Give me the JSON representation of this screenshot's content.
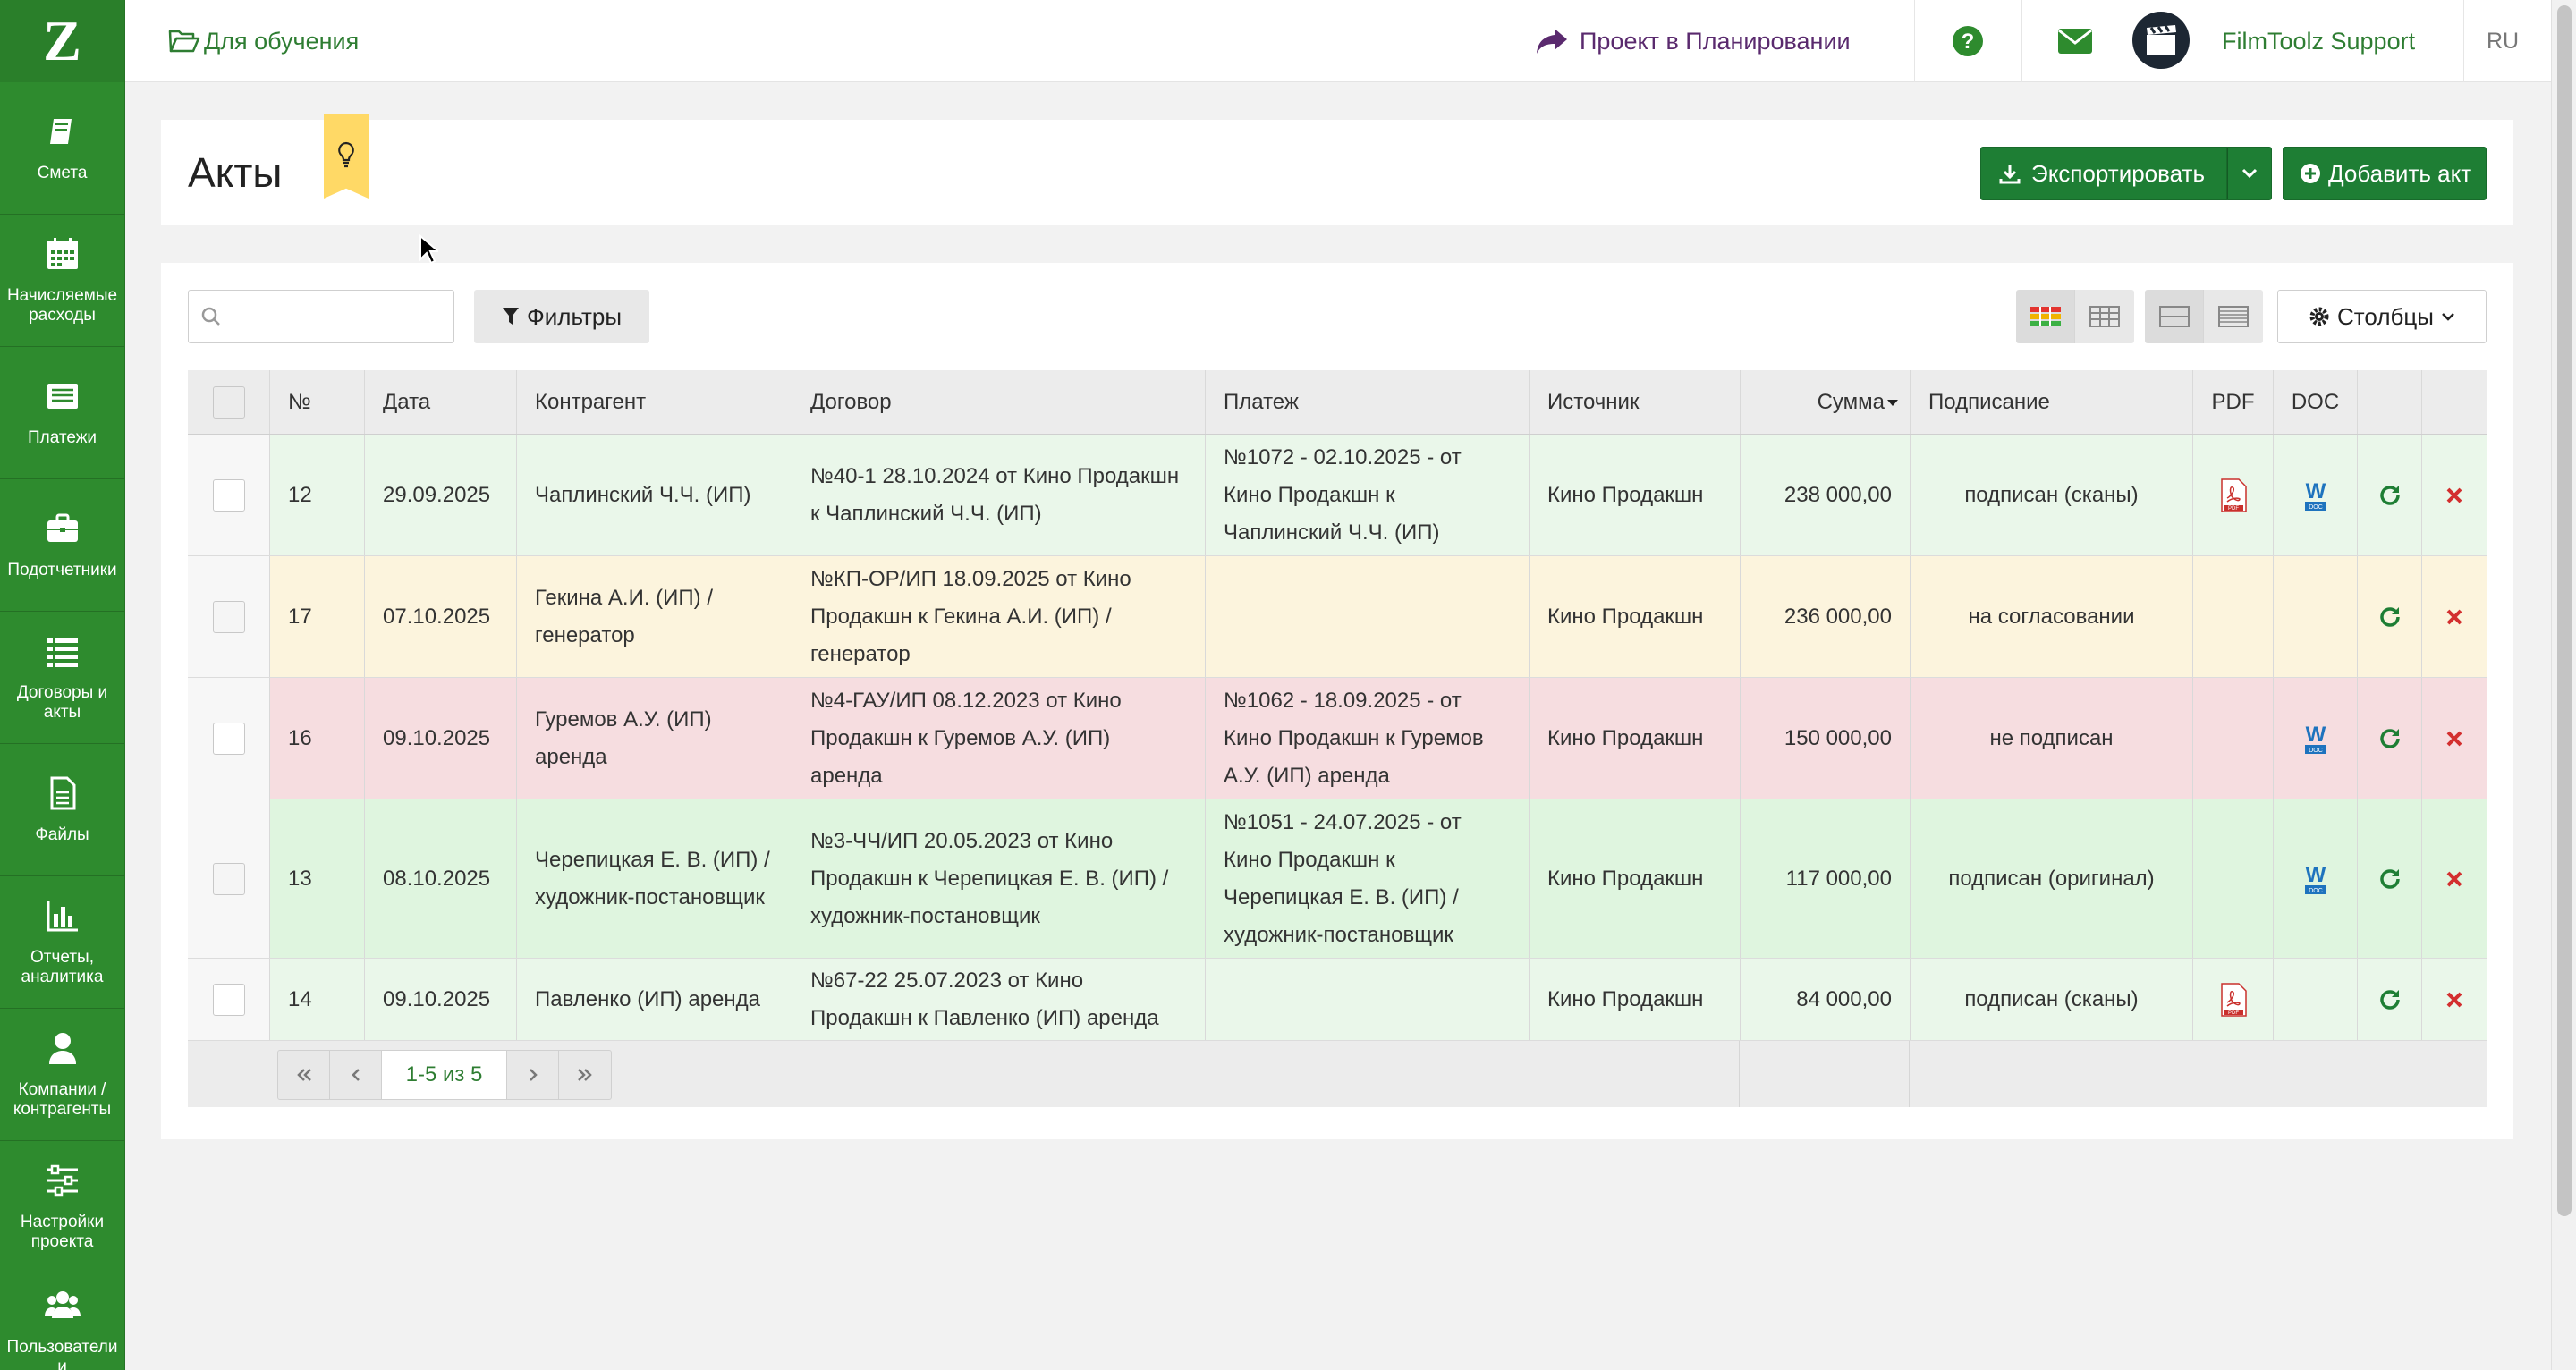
{
  "sidebar": {
    "logo": "Z",
    "items": [
      {
        "label": "Смета",
        "icon": "book-icon"
      },
      {
        "label": "Начисляемые расходы",
        "icon": "calendar-icon"
      },
      {
        "label": "Платежи",
        "icon": "list-box-icon"
      },
      {
        "label": "Подотчетники",
        "icon": "briefcase-icon"
      },
      {
        "label": "Договоры и акты",
        "icon": "list-icon"
      },
      {
        "label": "Файлы",
        "icon": "file-icon"
      },
      {
        "label": "Отчеты, аналитика",
        "icon": "bar-chart-icon"
      },
      {
        "label": "Компании / контрагенты",
        "icon": "user-icon"
      },
      {
        "label": "Настройки проекта",
        "icon": "sliders-icon"
      },
      {
        "label": "Пользователи и",
        "icon": "users-icon"
      }
    ]
  },
  "topbar": {
    "project_link": "Для обучения",
    "status_link": "Проект в Планировании",
    "user_name": "FilmToolz Support",
    "language": "RU"
  },
  "header": {
    "title": "Акты",
    "export_label": "Экспортировать",
    "add_label": "Добавить акт"
  },
  "toolbar": {
    "search_placeholder": "",
    "filters_label": "Фильтры",
    "columns_label": "Столбцы"
  },
  "table": {
    "columns": [
      "№",
      "Дата",
      "Контрагент",
      "Договор",
      "Платеж",
      "Источник",
      "Сумма",
      "Подписание",
      "PDF",
      "DOC"
    ],
    "rows": [
      {
        "no": "12",
        "date": "29.09.2025",
        "counterparty": "Чаплинский Ч.Ч. (ИП)",
        "contract": "№40-1 28.10.2024 от Кино Продакшн к Чаплинский Ч.Ч. (ИП)",
        "payment": "№1072 - 02.10.2025 - от Кино Продакшн к Чаплинский Ч.Ч. (ИП)",
        "source": "Кино Продакшн",
        "sum": "238 000,00",
        "signing": "подписан (сканы)",
        "pdf": true,
        "doc": true,
        "status_color": "#eaf7ea"
      },
      {
        "no": "17",
        "date": "07.10.2025",
        "counterparty": "Гекина А.И. (ИП) / генератор",
        "contract": "№КП-ОР/ИП 18.09.2025 от Кино Продакшн к Гекина А.И. (ИП) / генератор",
        "payment": "",
        "source": "Кино Продакшн",
        "sum": "236 000,00",
        "signing": "на согласовании",
        "pdf": false,
        "doc": false,
        "status_color": "#fcf4dd"
      },
      {
        "no": "16",
        "date": "09.10.2025",
        "counterparty": "Гуремов А.У. (ИП) аренда",
        "contract": "№4-ГАУ/ИП 08.12.2023 от Кино Продакшн к Гуремов А.У. (ИП) аренда",
        "payment": "№1062 - 18.09.2025 - от Кино Продакшн к Гуремов А.У. (ИП) аренда",
        "source": "Кино Продакшн",
        "sum": "150 000,00",
        "signing": "не подписан",
        "pdf": false,
        "doc": true,
        "status_color": "#f6dde0"
      },
      {
        "no": "13",
        "date": "08.10.2025",
        "counterparty": "Черепицкая Е. В. (ИП) / художник-постановщик",
        "contract": "№3-ЧЧ/ИП 20.05.2023 от Кино Продакшн к Черепицкая Е. В. (ИП) / художник-постановщик",
        "payment": "№1051 - 24.07.2025 - от Кино Продакшн к Черепицкая Е. В. (ИП) / художник-постановщик",
        "source": "Кино Продакшн",
        "sum": "117 000,00",
        "signing": "подписан (оригинал)",
        "pdf": false,
        "doc": true,
        "status_color": "#dff5df"
      },
      {
        "no": "14",
        "date": "09.10.2025",
        "counterparty": "Павленко (ИП) аренда",
        "contract": "№67-22 25.07.2023 от Кино Продакшн к Павленко (ИП) аренда",
        "payment": "",
        "source": "Кино Продакшн",
        "sum": "84 000,00",
        "signing": "подписан (сканы)",
        "pdf": true,
        "doc": false,
        "status_color": "#eaf7ea"
      }
    ]
  },
  "pagination": {
    "info": "1-5 из 5"
  },
  "colors": {
    "brand": "#2e8b2e",
    "button": "#1e7e34",
    "link": "#2e7d32",
    "delete": "#d32f2f"
  }
}
